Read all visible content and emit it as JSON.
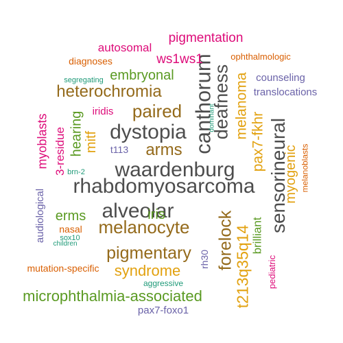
{
  "palette": {
    "gray": "#4d4d4d",
    "brown": "#946a1b",
    "gold": "#e2a10f",
    "green": "#5a9a22",
    "teal": "#1f9a78",
    "magenta": "#dd0b79",
    "orange": "#d95f02",
    "purple": "#6a62a8"
  },
  "words": [
    {
      "text": "rhabdomyosarcoma",
      "color": "gray",
      "rotate": 0
    },
    {
      "text": "waardenburg",
      "color": "gray",
      "rotate": 0
    },
    {
      "text": "dystopia",
      "color": "gray",
      "rotate": 0
    },
    {
      "text": "alveolar",
      "color": "gray",
      "rotate": 0
    },
    {
      "text": "canthorum",
      "color": "gray",
      "rotate": -90
    },
    {
      "text": "deafness",
      "color": "gray",
      "rotate": -90
    },
    {
      "text": "sensorineural",
      "color": "gray",
      "rotate": -90
    },
    {
      "text": "melanocyte",
      "color": "brown",
      "rotate": 0
    },
    {
      "text": "pigmentary",
      "color": "brown",
      "rotate": 0
    },
    {
      "text": "paired",
      "color": "brown",
      "rotate": 0
    },
    {
      "text": "heterochromia",
      "color": "brown",
      "rotate": 0
    },
    {
      "text": "arms",
      "color": "brown",
      "rotate": 0
    },
    {
      "text": "forelock",
      "color": "brown",
      "rotate": -90
    },
    {
      "text": "mitf",
      "color": "gold",
      "rotate": -90
    },
    {
      "text": "syndrome",
      "color": "gold",
      "rotate": 0
    },
    {
      "text": "t213q35q14",
      "color": "gold",
      "rotate": -90
    },
    {
      "text": "melanoma",
      "color": "gold",
      "rotate": -90
    },
    {
      "text": "pax7-fkhr",
      "color": "gold",
      "rotate": -90
    },
    {
      "text": "myogenic",
      "color": "gold",
      "rotate": -90
    },
    {
      "text": "microphthalmia-associated",
      "color": "green",
      "rotate": 0
    },
    {
      "text": "embryonal",
      "color": "green",
      "rotate": 0
    },
    {
      "text": "hearing",
      "color": "green",
      "rotate": -90
    },
    {
      "text": "erms",
      "color": "green",
      "rotate": 0
    },
    {
      "text": "iris",
      "color": "green",
      "rotate": 0
    },
    {
      "text": "brilliant",
      "color": "green",
      "rotate": -90
    },
    {
      "text": "pigmentation",
      "color": "magenta",
      "rotate": 0
    },
    {
      "text": "autosomal",
      "color": "magenta",
      "rotate": 0
    },
    {
      "text": "ws1ws1",
      "color": "magenta",
      "rotate": 0
    },
    {
      "text": "iridis",
      "color": "magenta",
      "rotate": 0
    },
    {
      "text": "myoblasts",
      "color": "magenta",
      "rotate": -90
    },
    {
      "text": "3-residue",
      "color": "magenta",
      "rotate": -90
    },
    {
      "text": "pediatric",
      "color": "magenta",
      "rotate": -90
    },
    {
      "text": "diagnoses",
      "color": "orange",
      "rotate": 0
    },
    {
      "text": "ophthalmologic",
      "color": "orange",
      "rotate": 0
    },
    {
      "text": "nasal",
      "color": "orange",
      "rotate": 0
    },
    {
      "text": "mutation-specific",
      "color": "orange",
      "rotate": 0
    },
    {
      "text": "melanoblasts",
      "color": "orange",
      "rotate": -90
    },
    {
      "text": "counseling",
      "color": "purple",
      "rotate": 0
    },
    {
      "text": "translocations",
      "color": "purple",
      "rotate": 0
    },
    {
      "text": "t113",
      "color": "purple",
      "rotate": 0
    },
    {
      "text": "audiological",
      "color": "purple",
      "rotate": -90
    },
    {
      "text": "rh30",
      "color": "purple",
      "rotate": -90
    },
    {
      "text": "pax7-foxo1",
      "color": "purple",
      "rotate": 0
    },
    {
      "text": "segregating",
      "color": "teal",
      "rotate": 0
    },
    {
      "text": "dominant",
      "color": "teal",
      "rotate": -90
    },
    {
      "text": "brn-2",
      "color": "teal",
      "rotate": 0
    },
    {
      "text": "sox10",
      "color": "teal",
      "rotate": 0
    },
    {
      "text": "children",
      "color": "teal",
      "rotate": 0
    },
    {
      "text": "aggressive",
      "color": "teal",
      "rotate": 0
    }
  ]
}
